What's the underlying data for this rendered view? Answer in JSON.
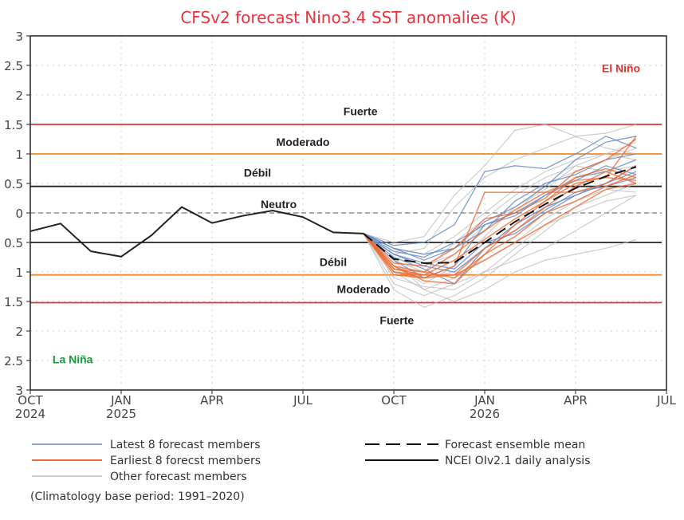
{
  "chart_data": {
    "type": "line",
    "title": "CFSv2 forecast Nino3.4 SST anomalies (K)",
    "ylim": [
      -3,
      3
    ],
    "yticks": [
      3,
      2.5,
      2,
      1.5,
      1,
      0.5,
      0,
      -0.5,
      -1,
      -1.5,
      -2,
      -2.5,
      -3
    ],
    "ytick_labels": [
      "3",
      "2.5",
      "2",
      "1.5",
      "1",
      "0.5",
      "0",
      "0.5",
      "1",
      "1.5",
      "2",
      "2.5",
      "3"
    ],
    "x_months": [
      "Oct 2024",
      "Nov 2024",
      "Dec 2024",
      "Jan 2025",
      "Feb 2025",
      "Mar 2025",
      "Apr 2025",
      "May 2025",
      "Jun 2025",
      "Jul 2025",
      "Aug 2025",
      "Sep 2025",
      "Oct 2025",
      "Nov 2025",
      "Dec 2025",
      "Jan 2026",
      "Feb 2026",
      "Mar 2026",
      "Apr 2026",
      "May 2026",
      "Jun 2026",
      "Jul 2026"
    ],
    "xticks": [
      {
        "m": 0,
        "l1": "OCT",
        "l2": "2024"
      },
      {
        "m": 3,
        "l1": "JAN",
        "l2": "2025"
      },
      {
        "m": 6,
        "l1": "APR",
        "l2": ""
      },
      {
        "m": 9,
        "l1": "JUL",
        "l2": ""
      },
      {
        "m": 12,
        "l1": "OCT",
        "l2": ""
      },
      {
        "m": 15,
        "l1": "JAN",
        "l2": "2026"
      },
      {
        "m": 18,
        "l1": "APR",
        "l2": ""
      },
      {
        "m": 21,
        "l1": "JUL",
        "l2": ""
      }
    ],
    "grid": true,
    "thresholds": [
      {
        "value": 1.5,
        "color": "#e8322e"
      },
      {
        "value": 1.0,
        "color": "#f08a2a"
      },
      {
        "value": 0.45,
        "color": "#222222"
      },
      {
        "value": 0,
        "color": "#777777",
        "dashed": true
      },
      {
        "value": -0.5,
        "color": "#222222"
      },
      {
        "value": -1.05,
        "color": "#f08a2a"
      },
      {
        "value": -1.52,
        "color": "#e8322e"
      }
    ],
    "category_labels": [
      {
        "text": "El Niño",
        "value": 2.45,
        "m": 19.5,
        "color": "#e8322e"
      },
      {
        "text": "Fuerte",
        "value": 1.72,
        "m": 10.9,
        "color": "#222"
      },
      {
        "text": "Moderado",
        "value": 1.2,
        "m": 9.0,
        "color": "#222"
      },
      {
        "text": "Débil",
        "value": 0.68,
        "m": 7.5,
        "color": "#222"
      },
      {
        "text": "Neutro",
        "value": 0.15,
        "m": 8.2,
        "color": "#222"
      },
      {
        "text": "Débil",
        "value": -0.83,
        "m": 10.0,
        "color": "#222"
      },
      {
        "text": "Moderado",
        "value": -1.29,
        "m": 11.0,
        "color": "#222"
      },
      {
        "text": "Fuerte",
        "value": -1.82,
        "m": 12.1,
        "color": "#222"
      },
      {
        "text": "La Niña",
        "value": -2.48,
        "m": 1.4,
        "color": "#1a9a3a"
      }
    ],
    "start_month_forecast": 11,
    "series": [
      {
        "name": "NCEI OIv2.1 daily analysis",
        "start": 0,
        "color": "#222222",
        "values": [
          -0.31,
          -0.18,
          -0.65,
          -0.74,
          -0.38,
          0.1,
          -0.17,
          -0.05,
          0.04,
          -0.07,
          -0.33,
          -0.35
        ]
      },
      {
        "name": "Forecast ensemble mean",
        "start": 11,
        "color": "#111111",
        "dashed": true,
        "values": [
          -0.35,
          -0.78,
          -0.85,
          -0.84,
          -0.5,
          -0.15,
          0.15,
          0.42,
          0.62,
          0.78
        ]
      }
    ],
    "latest_members": {
      "color": "#6b8cc4",
      "members": [
        [
          -0.35,
          -0.6,
          -0.7,
          -0.6,
          -0.15,
          0.1,
          0.45,
          0.9,
          1.2,
          1.3
        ],
        [
          -0.35,
          -0.7,
          -0.9,
          -1.0,
          -0.6,
          -0.2,
          0.1,
          0.3,
          0.5,
          0.8
        ],
        [
          -0.35,
          -0.55,
          -0.5,
          -0.2,
          0.7,
          0.8,
          0.75,
          1.0,
          1.3,
          1.1
        ],
        [
          -0.35,
          -0.8,
          -1.1,
          -0.9,
          -0.2,
          0.0,
          0.3,
          0.6,
          0.7,
          0.9
        ],
        [
          -0.35,
          -0.65,
          -0.75,
          -0.5,
          -0.2,
          -0.05,
          0.3,
          0.55,
          0.8,
          0.65
        ],
        [
          -0.35,
          -0.75,
          -0.95,
          -1.2,
          -0.6,
          -0.3,
          0.05,
          0.35,
          0.45,
          0.6
        ],
        [
          -0.35,
          -0.6,
          -0.8,
          -0.6,
          -0.3,
          0.2,
          0.5,
          0.65,
          0.9,
          1.0
        ],
        [
          -0.35,
          -0.7,
          -0.85,
          -0.95,
          -0.5,
          -0.35,
          0.0,
          0.3,
          0.5,
          0.7
        ]
      ]
    },
    "earliest_members": {
      "color": "#ee6a33",
      "members": [
        [
          -0.35,
          -1.05,
          -1.1,
          -1.05,
          -0.6,
          -0.3,
          0.1,
          0.45,
          0.7,
          0.5
        ],
        [
          -0.35,
          -0.95,
          -1.0,
          -1.1,
          -0.7,
          -0.2,
          0.2,
          0.6,
          0.75,
          0.6
        ],
        [
          -0.35,
          -0.9,
          -1.0,
          -0.7,
          -0.3,
          0.05,
          0.35,
          0.55,
          0.6,
          0.55
        ],
        [
          -0.35,
          -1.0,
          -1.05,
          -1.05,
          -0.8,
          -0.5,
          -0.2,
          0.1,
          0.4,
          0.5
        ],
        [
          -0.35,
          -0.85,
          -0.9,
          -0.6,
          -0.1,
          0.0,
          0.25,
          0.7,
          0.9,
          1.25
        ],
        [
          -0.35,
          -1.0,
          -1.1,
          -0.9,
          0.35,
          0.35,
          0.35,
          0.35,
          0.5,
          0.8
        ],
        [
          -0.35,
          -0.9,
          -1.15,
          -1.2,
          -0.7,
          -0.4,
          0.0,
          0.2,
          0.45,
          0.65
        ],
        [
          -0.35,
          -0.95,
          -1.05,
          -0.8,
          -0.45,
          -0.1,
          0.2,
          0.5,
          0.6,
          1.3
        ]
      ]
    },
    "other_members": {
      "color": "#bdbdbd",
      "members": [
        [
          -0.35,
          -0.5,
          -0.4,
          0.3,
          0.8,
          1.4,
          1.5,
          1.3,
          1.35,
          1.5
        ],
        [
          -0.35,
          -1.2,
          -1.4,
          -1.2,
          -1.0,
          -0.8,
          -0.6,
          -0.3,
          0.0,
          0.3
        ],
        [
          -0.35,
          -0.8,
          -1.3,
          -1.5,
          -1.3,
          -1.0,
          -0.8,
          -0.7,
          -0.6,
          -0.45
        ],
        [
          -0.35,
          -1.3,
          -1.6,
          -1.4,
          -1.1,
          -0.7,
          -0.3,
          0.1,
          0.3,
          0.5
        ],
        [
          -0.35,
          -0.7,
          -0.6,
          0.1,
          0.6,
          0.9,
          1.1,
          1.3,
          1.1,
          1.0
        ],
        [
          -0.35,
          -0.9,
          -1.2,
          -0.9,
          -0.4,
          0.1,
          0.4,
          0.8,
          1.0,
          1.2
        ],
        [
          -0.35,
          -0.6,
          -0.7,
          -0.4,
          0.0,
          0.4,
          0.7,
          0.9,
          1.0,
          0.9
        ],
        [
          -0.35,
          -1.0,
          -1.3,
          -1.1,
          -0.8,
          -0.5,
          -0.1,
          0.2,
          0.4,
          0.35
        ],
        [
          -0.35,
          -0.8,
          -1.0,
          -0.5,
          -0.1,
          0.3,
          0.6,
          0.8,
          0.7,
          0.8
        ],
        [
          -0.35,
          -1.1,
          -1.25,
          -1.3,
          -1.0,
          -0.6,
          -0.2,
          0.0,
          0.2,
          0.3
        ],
        [
          -0.35,
          -0.7,
          -0.9,
          -0.7,
          -0.2,
          0.0,
          0.5,
          0.7,
          0.9,
          1.1
        ],
        [
          -0.35,
          -0.9,
          -1.1,
          -1.0,
          -0.6,
          -0.2,
          0.1,
          0.3,
          0.5,
          0.8
        ]
      ]
    }
  },
  "legend": {
    "latest": "Latest 8 forecast members",
    "earliest": "Earliest 8 forecst members",
    "other": "Other forecast members",
    "mean": "Forecast ensemble mean",
    "analysis": "NCEI OIv2.1 daily analysis",
    "note": "(Climatology base period: 1991–2020)"
  }
}
